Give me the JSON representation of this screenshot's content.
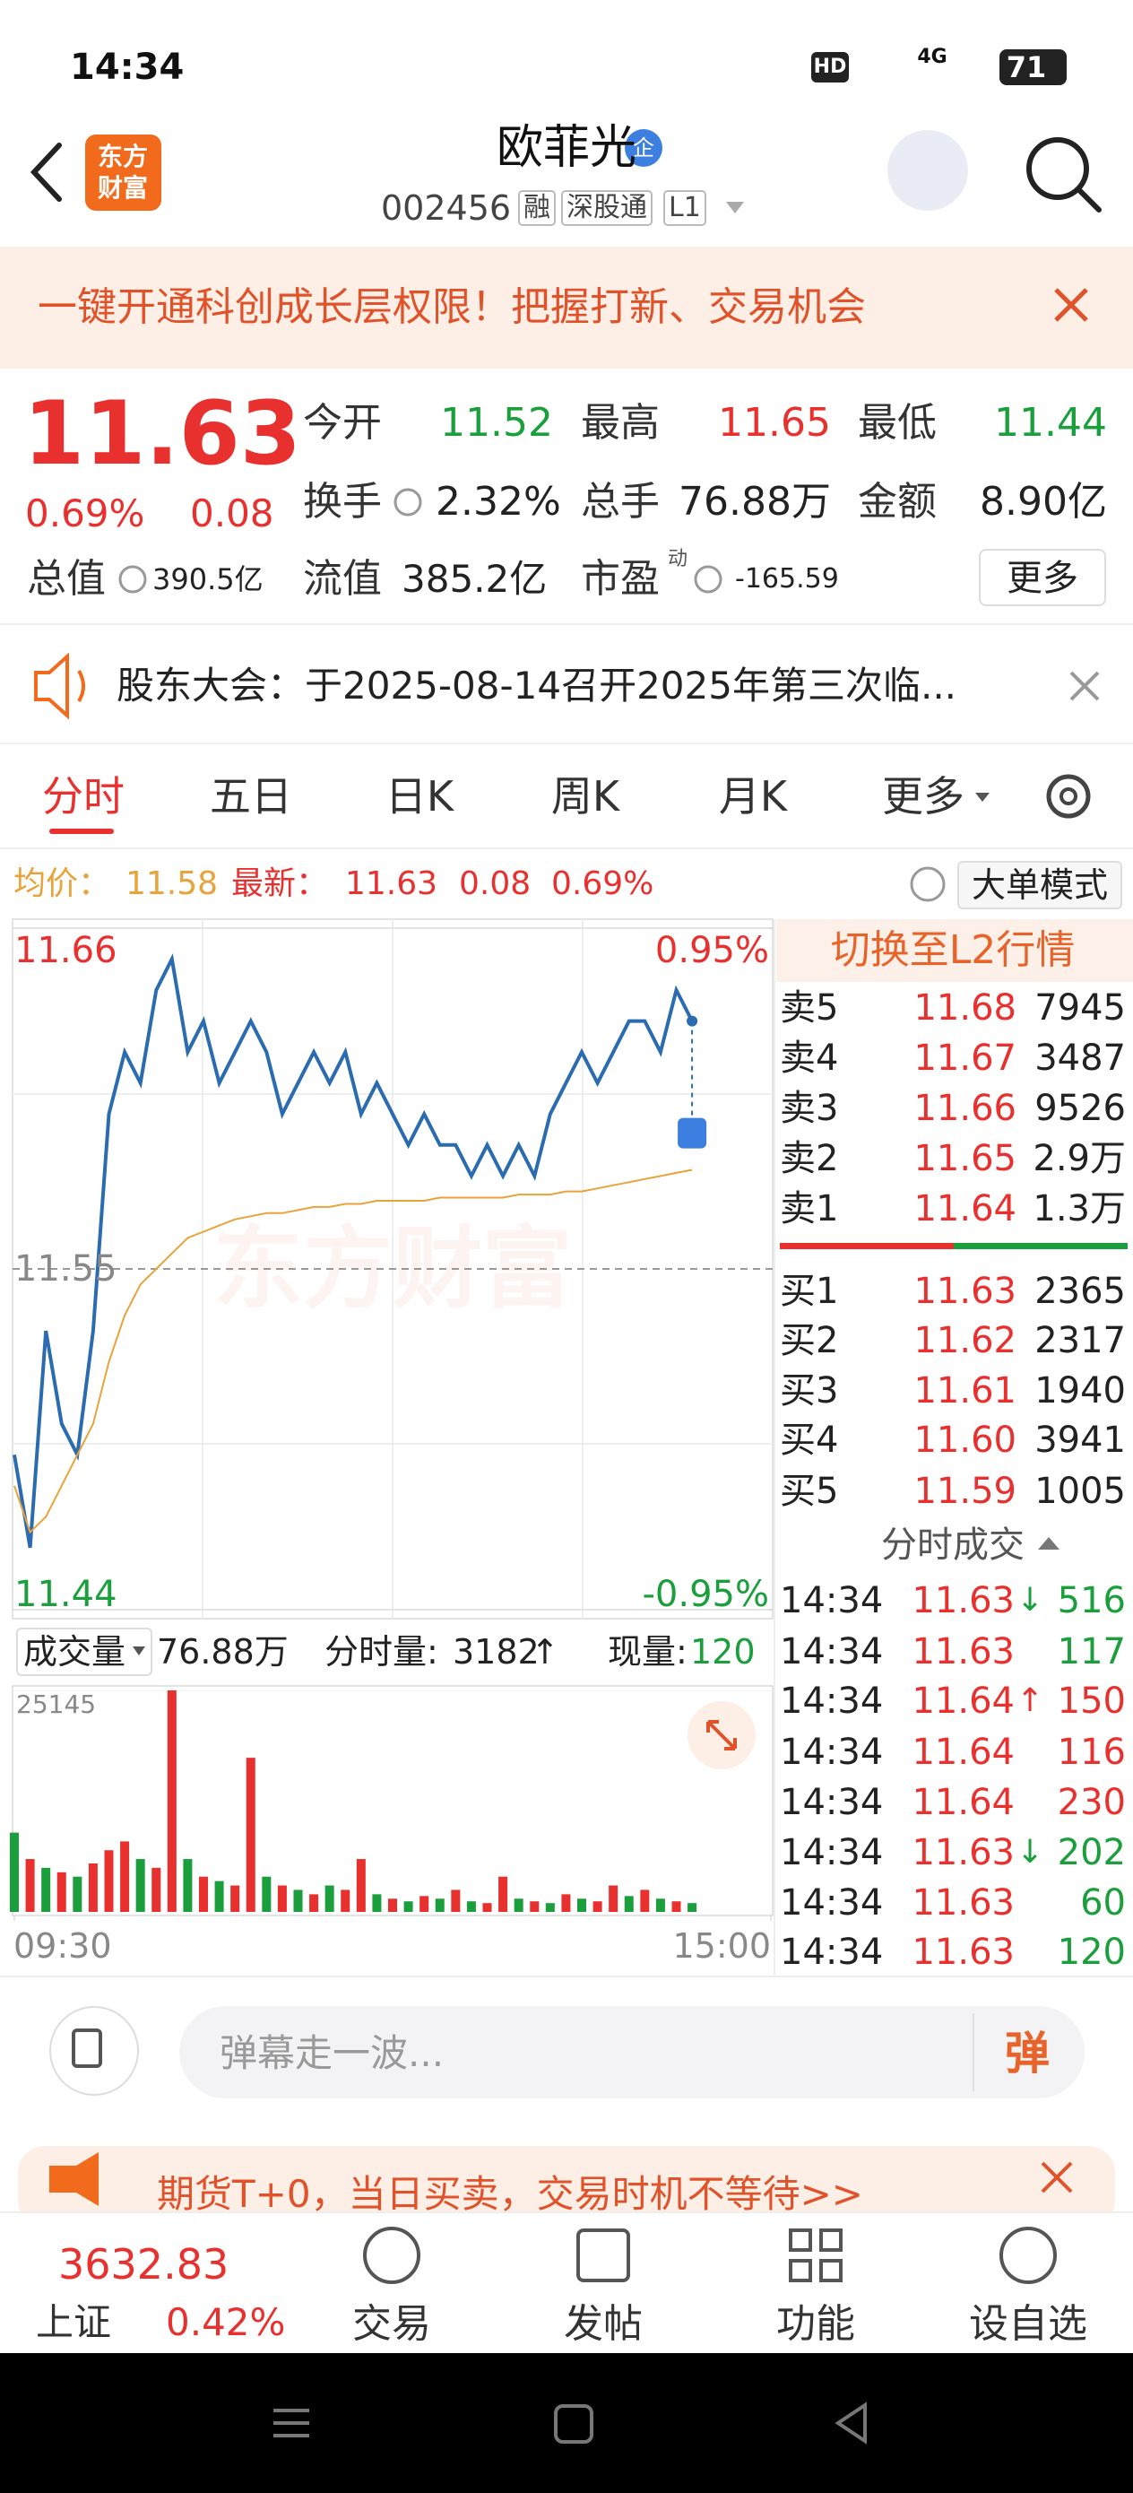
{
  "status_bar": {
    "time": "14:34",
    "hd": "HD",
    "network": "4G",
    "battery": "71"
  },
  "header": {
    "logo": [
      "东方",
      "财富"
    ],
    "name": "欧菲光",
    "badge": "企",
    "code": "002456",
    "tags": [
      "融",
      "深股通",
      "L1"
    ]
  },
  "banner": {
    "text": "一键开通科创成长层权限！把握打新、交易机会"
  },
  "quote": {
    "price": "11.63",
    "change_pct": "0.69%",
    "change": "0.08",
    "fields": [
      {
        "label": "今开",
        "value": "11.52",
        "color": "#1a9f3c"
      },
      {
        "label": "最高",
        "value": "11.65",
        "color": "#e8312f"
      },
      {
        "label": "最低",
        "value": "11.44",
        "color": "#1a9f3c"
      },
      {
        "label": "换手",
        "value": "2.32%",
        "color": "#222222"
      },
      {
        "label": "总手",
        "value": "76.88万",
        "color": "#222222"
      },
      {
        "label": "金额",
        "value": "8.90亿",
        "color": "#222222"
      },
      {
        "label": "总值",
        "value": "390.5亿",
        "color": "#222222"
      },
      {
        "label": "流值",
        "value": "385.2亿",
        "color": "#222222"
      },
      {
        "label": "市盈",
        "note": "动",
        "value": "-165.59",
        "color": "#222222"
      }
    ],
    "more": "更多"
  },
  "notice": {
    "text": "股东大会：于2025-08-14召开2025年第三次临..."
  },
  "tabs": [
    "分时",
    "五日",
    "日K",
    "周K",
    "月K",
    "更多"
  ],
  "chart_info": {
    "avg_label": "均价：",
    "avg": "11.58",
    "latest_label": "最新：",
    "latest": "11.63",
    "change": "0.08",
    "pct": "0.69%",
    "mode": "大单模式",
    "watermark": "东方财富"
  },
  "chart_data": [
    {
      "type": "line",
      "grid": true,
      "ylim": [
        11.44,
        11.66
      ],
      "yticks": [
        11.44,
        11.55,
        11.66
      ],
      "y2lim": [
        -0.95,
        0.95
      ],
      "y2ticks": [
        {
          "value": -0.95,
          "label": "-0.95%"
        },
        {
          "value": 0.95,
          "label": "0.95%"
        }
      ],
      "xlim": [
        0,
        240
      ],
      "xticks": [
        {
          "value": 0,
          "label": "09:30"
        },
        {
          "value": 240,
          "label": "15:00"
        }
      ],
      "x": [
        0,
        5,
        10,
        15,
        20,
        25,
        30,
        35,
        40,
        45,
        50,
        55,
        60,
        65,
        70,
        75,
        80,
        85,
        90,
        95,
        100,
        105,
        110,
        115,
        120,
        125,
        130,
        135,
        140,
        145,
        150,
        155,
        160,
        165,
        170,
        175,
        180,
        185,
        190,
        195,
        200,
        205,
        210,
        215
      ],
      "series": [
        {
          "color": "#2b6cb0",
          "values": [
            11.49,
            11.46,
            11.53,
            11.5,
            11.49,
            11.53,
            11.6,
            11.62,
            11.61,
            11.64,
            11.65,
            11.62,
            11.63,
            11.61,
            11.62,
            11.63,
            11.62,
            11.6,
            11.61,
            11.62,
            11.61,
            11.62,
            11.6,
            11.61,
            11.6,
            11.59,
            11.6,
            11.59,
            11.59,
            11.58,
            11.59,
            11.58,
            11.59,
            11.58,
            11.6,
            11.61,
            11.62,
            11.61,
            11.62,
            11.63,
            11.63,
            11.62,
            11.64,
            11.63
          ]
        },
        {
          "color": "#e8a33a",
          "values": [
            11.48,
            11.465,
            11.47,
            11.48,
            11.49,
            11.5,
            11.52,
            11.535,
            11.545,
            11.55,
            11.555,
            11.56,
            11.562,
            11.564,
            11.566,
            11.567,
            11.568,
            11.568,
            11.569,
            11.57,
            11.57,
            11.571,
            11.571,
            11.572,
            11.572,
            11.572,
            11.572,
            11.573,
            11.573,
            11.573,
            11.573,
            11.573,
            11.574,
            11.574,
            11.574,
            11.575,
            11.575,
            11.576,
            11.577,
            11.578,
            11.579,
            11.58,
            11.581,
            11.582
          ]
        }
      ]
    },
    {
      "type": "bar",
      "ylim": [
        0,
        25145
      ],
      "yticks": [
        25145
      ],
      "xlim": [
        0,
        240
      ],
      "x": [
        0,
        5,
        10,
        15,
        20,
        25,
        30,
        35,
        40,
        45,
        50,
        55,
        60,
        65,
        70,
        75,
        80,
        85,
        90,
        95,
        100,
        105,
        110,
        115,
        120,
        125,
        130,
        135,
        140,
        145,
        150,
        155,
        160,
        165,
        170,
        175,
        180,
        185,
        190,
        195,
        200,
        205,
        210,
        215
      ],
      "values": [
        9000,
        6000,
        5000,
        4500,
        4000,
        5500,
        7000,
        8000,
        6000,
        5000,
        25145,
        6000,
        4000,
        3500,
        3000,
        17500,
        4000,
        3000,
        2500,
        2000,
        3000,
        2500,
        6000,
        2000,
        1500,
        1200,
        1800,
        1500,
        2500,
        1200,
        1000,
        4000,
        1500,
        1200,
        1000,
        2000,
        1500,
        1200,
        3000,
        1800,
        2500,
        1500,
        1200,
        1000
      ],
      "colors": [
        "#1a9f3c",
        "#e8312f",
        "#1a9f3c",
        "#e8312f",
        "#1a9f3c",
        "#e8312f",
        "#e8312f",
        "#e8312f",
        "#1a9f3c",
        "#e8312f",
        "#e8312f",
        "#1a9f3c",
        "#e8312f",
        "#1a9f3c",
        "#e8312f",
        "#e8312f",
        "#1a9f3c",
        "#e8312f",
        "#1a9f3c",
        "#e8312f",
        "#1a9f3c",
        "#e8312f",
        "#e8312f",
        "#1a9f3c",
        "#e8312f",
        "#1a9f3c",
        "#e8312f",
        "#1a9f3c",
        "#e8312f",
        "#1a9f3c",
        "#e8312f",
        "#e8312f",
        "#1a9f3c",
        "#e8312f",
        "#1a9f3c",
        "#e8312f",
        "#1a9f3c",
        "#e8312f",
        "#e8312f",
        "#1a9f3c",
        "#e8312f",
        "#1a9f3c",
        "#e8312f",
        "#1a9f3c"
      ]
    }
  ],
  "volume_info": {
    "label": "成交量",
    "total": "76.88万",
    "period_label": "分时量:",
    "period": "3182",
    "period_flag": "↑",
    "current_label": "现量:",
    "current": "120"
  },
  "order_book": {
    "switch": "切换至L2行情",
    "asks": [
      {
        "label": "卖5",
        "price": "11.68",
        "volume": "7945"
      },
      {
        "label": "卖4",
        "price": "11.67",
        "volume": "3487"
      },
      {
        "label": "卖3",
        "price": "11.66",
        "volume": "9526"
      },
      {
        "label": "卖2",
        "price": "11.65",
        "volume": "2.9万"
      },
      {
        "label": "卖1",
        "price": "11.64",
        "volume": "1.3万"
      }
    ],
    "bids": [
      {
        "label": "买1",
        "price": "11.63",
        "volume": "2365"
      },
      {
        "label": "买2",
        "price": "11.62",
        "volume": "2317"
      },
      {
        "label": "买3",
        "price": "11.61",
        "volume": "1940"
      },
      {
        "label": "买4",
        "price": "11.60",
        "volume": "3941"
      },
      {
        "label": "买5",
        "price": "11.59",
        "volume": "1005"
      }
    ]
  },
  "trades": {
    "title": "分时成交",
    "rows": [
      {
        "time": "14:34",
        "price": "11.63",
        "flag": "↓",
        "volume": "516",
        "color": "#1a9f3c"
      },
      {
        "time": "14:34",
        "price": "11.63",
        "volume": "117",
        "color": "#1a9f3c"
      },
      {
        "time": "14:34",
        "price": "11.64",
        "flag": "↑",
        "volume": "150",
        "color": "#e8312f"
      },
      {
        "time": "14:34",
        "price": "11.64",
        "volume": "116",
        "color": "#e8312f"
      },
      {
        "time": "14:34",
        "price": "11.64",
        "volume": "230",
        "color": "#e8312f"
      },
      {
        "time": "14:34",
        "price": "11.63",
        "flag": "↓",
        "volume": "202",
        "color": "#1a9f3c"
      },
      {
        "time": "14:34",
        "price": "11.63",
        "volume": "60",
        "color": "#1a9f3c"
      },
      {
        "time": "14:34",
        "price": "11.63",
        "volume": "120",
        "color": "#1a9f3c"
      }
    ]
  },
  "comment": {
    "placeholder": "弹幕走一波...",
    "button": "弹"
  },
  "ad": {
    "text": "期货T+0，当日买卖，交易时机不等待>>"
  },
  "bottom_nav": {
    "index_value": "3632.83",
    "index_name": "上证",
    "index_pct": "0.42%",
    "items": [
      "交易",
      "发帖",
      "功能",
      "设自选"
    ]
  }
}
